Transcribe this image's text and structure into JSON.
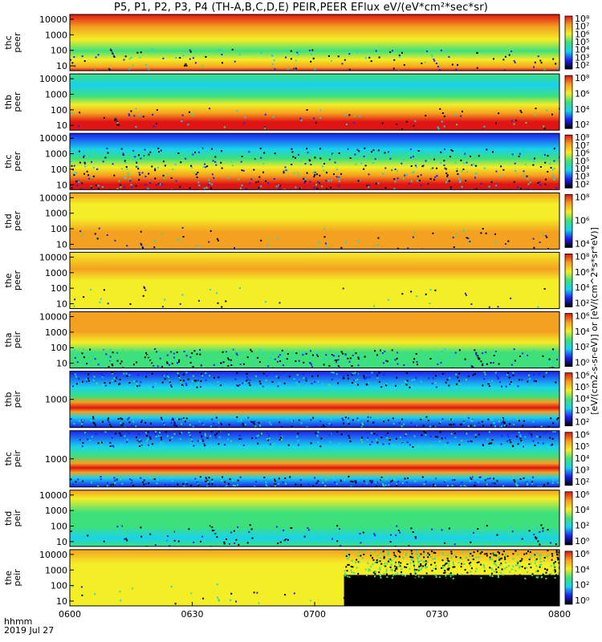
{
  "title": "P5, P1, P2, P3, P4 (TH-A,B,C,D,E) PEIR,PEER EFlux eV/(eV*cm²*sec*sr)",
  "footer": {
    "time_label": "hhmm",
    "date_label": "2019 Jul 27"
  },
  "colorbar_unit_label": "[eV/(cm2-s-sr-eV)] or [eV/(cm^2*s*sr*eV)]",
  "colors": {
    "black": "#000000",
    "blue": "#1e1ef0",
    "cyan": "#18d2ee",
    "green": "#3ee07a",
    "yellow": "#f4ee26",
    "orange": "#f4a020",
    "red": "#e01414"
  },
  "chart_data": {
    "type": "heatmap",
    "x_axis": {
      "ticks": [
        "0600",
        "0630",
        "0700",
        "0730",
        "0800"
      ],
      "range": [
        "06:00",
        "08:00"
      ]
    },
    "panels": [
      {
        "ylabel": [
          "thc",
          "peer"
        ],
        "yticks": [
          "10",
          "100",
          "1000",
          "10000"
        ],
        "cbar_ticks": [
          "10²",
          "10³",
          "10⁴",
          "10⁵",
          "10⁶",
          "10⁷",
          "10⁸"
        ],
        "bands": [
          [
            1.0,
            "red"
          ],
          [
            0.78,
            "orange"
          ],
          [
            0.55,
            "yellow"
          ],
          [
            0.35,
            "green"
          ],
          [
            0.2,
            "yellow"
          ],
          [
            0.06,
            "orange"
          ],
          [
            0.0,
            "red"
          ]
        ],
        "noise": 0.15,
        "ybar": "top"
      },
      {
        "ylabel": [
          "thb",
          "peer"
        ],
        "yticks": [
          "10",
          "100",
          "1000",
          "10000"
        ],
        "cbar_ticks": [
          "10²",
          "10⁴",
          "10⁶",
          "10⁸"
        ],
        "bands": [
          [
            1.0,
            "green"
          ],
          [
            0.8,
            "cyan"
          ],
          [
            0.6,
            "green"
          ],
          [
            0.45,
            "yellow"
          ],
          [
            0.3,
            "orange"
          ],
          [
            0.15,
            "red"
          ],
          [
            0.0,
            "red"
          ]
        ],
        "noise": 0.1,
        "ybar": "top"
      },
      {
        "ylabel": [
          "thc",
          "peer"
        ],
        "yticks": [
          "10",
          "100",
          "1000",
          "10000"
        ],
        "cbar_ticks": [
          "10²",
          "10³",
          "10⁴",
          "10⁵",
          "10⁶",
          "10⁷",
          "10⁸"
        ],
        "bands": [
          [
            1.0,
            "blue"
          ],
          [
            0.72,
            "cyan"
          ],
          [
            0.55,
            "green"
          ],
          [
            0.4,
            "yellow"
          ],
          [
            0.25,
            "orange"
          ],
          [
            0.1,
            "red"
          ],
          [
            0.0,
            "red"
          ]
        ],
        "noise": 0.55,
        "noise_top": 0.75,
        "ybar": "top"
      },
      {
        "ylabel": [
          "thd",
          "peer"
        ],
        "yticks": [
          "10",
          "100",
          "1000",
          "10000"
        ],
        "cbar_ticks": [
          "10⁴",
          "10⁶",
          "10⁸"
        ],
        "bands": [
          [
            1.0,
            "orange"
          ],
          [
            0.8,
            "yellow"
          ],
          [
            0.55,
            "yellow"
          ],
          [
            0.3,
            "orange"
          ],
          [
            0.0,
            "orange"
          ]
        ],
        "noise": 0.08,
        "ybar": "none"
      },
      {
        "ylabel": [
          "the",
          "peer"
        ],
        "yticks": [
          "10",
          "100",
          "1000",
          "10000"
        ],
        "cbar_ticks": [
          "10²",
          "10⁴",
          "10⁶",
          "10⁸"
        ],
        "bands": [
          [
            1.0,
            "yellow"
          ],
          [
            0.7,
            "orange"
          ],
          [
            0.5,
            "yellow"
          ],
          [
            0.2,
            "yellow"
          ],
          [
            0.0,
            "yellow"
          ]
        ],
        "noise": 0.05,
        "ybar": "none"
      },
      {
        "ylabel": [
          "tha",
          "peir"
        ],
        "yticks": [
          "10",
          "100",
          "1000",
          "10000"
        ],
        "cbar_ticks": [
          "10⁰",
          "10²",
          "10⁴",
          "10⁶"
        ],
        "bands": [
          [
            1.0,
            "orange"
          ],
          [
            0.65,
            "orange"
          ],
          [
            0.45,
            "yellow"
          ],
          [
            0.28,
            "green"
          ],
          [
            0.0,
            "green"
          ]
        ],
        "noise": 0.4,
        "noise_top": 0.35,
        "ybar": "top"
      },
      {
        "ylabel": [
          "thb",
          "peir"
        ],
        "yticks": [
          "1000"
        ],
        "cbar_ticks": [
          "10²",
          "10³",
          "10⁴",
          "10⁵",
          "10⁶"
        ],
        "bands": [
          [
            1.0,
            "blue"
          ],
          [
            0.72,
            "cyan"
          ],
          [
            0.55,
            "green"
          ],
          [
            0.45,
            "orange"
          ],
          [
            0.35,
            "red"
          ],
          [
            0.28,
            "orange"
          ],
          [
            0.18,
            "cyan"
          ],
          [
            0.0,
            "blue"
          ]
        ],
        "noise": 0.6,
        "noise_top": 1.0,
        "ybar": "top"
      },
      {
        "ylabel": [
          "thc",
          "peir"
        ],
        "yticks": [
          "1000"
        ],
        "cbar_ticks": [
          "10²",
          "10³",
          "10⁴",
          "10⁵",
          "10⁶"
        ],
        "bands": [
          [
            1.0,
            "blue"
          ],
          [
            0.72,
            "cyan"
          ],
          [
            0.55,
            "green"
          ],
          [
            0.42,
            "orange"
          ],
          [
            0.34,
            "red"
          ],
          [
            0.26,
            "orange"
          ],
          [
            0.16,
            "cyan"
          ],
          [
            0.0,
            "blue"
          ]
        ],
        "noise": 0.6,
        "noise_top": 1.0,
        "ybar": "bottom"
      },
      {
        "ylabel": [
          "thd",
          "peir"
        ],
        "yticks": [
          "10",
          "100",
          "1000",
          "10000"
        ],
        "cbar_ticks": [
          "10⁰",
          "10²",
          "10⁴",
          "10⁶"
        ],
        "bands": [
          [
            1.0,
            "orange"
          ],
          [
            0.85,
            "yellow"
          ],
          [
            0.6,
            "green"
          ],
          [
            0.35,
            "green"
          ],
          [
            0.15,
            "cyan"
          ],
          [
            0.0,
            "green"
          ]
        ],
        "noise": 0.2,
        "ybar": "none"
      },
      {
        "ylabel": [
          "the",
          "peir"
        ],
        "yticks": [
          "10",
          "100",
          "1000",
          "10000"
        ],
        "cbar_ticks": [
          "10⁰",
          "10²",
          "10⁴",
          "10⁶"
        ],
        "bands": [
          [
            1.0,
            "orange"
          ],
          [
            0.75,
            "yellow"
          ],
          [
            0.4,
            "yellow"
          ],
          [
            0.0,
            "yellow"
          ]
        ],
        "noise": 0.05,
        "ybar": "top",
        "black_after": 0.56
      }
    ]
  }
}
